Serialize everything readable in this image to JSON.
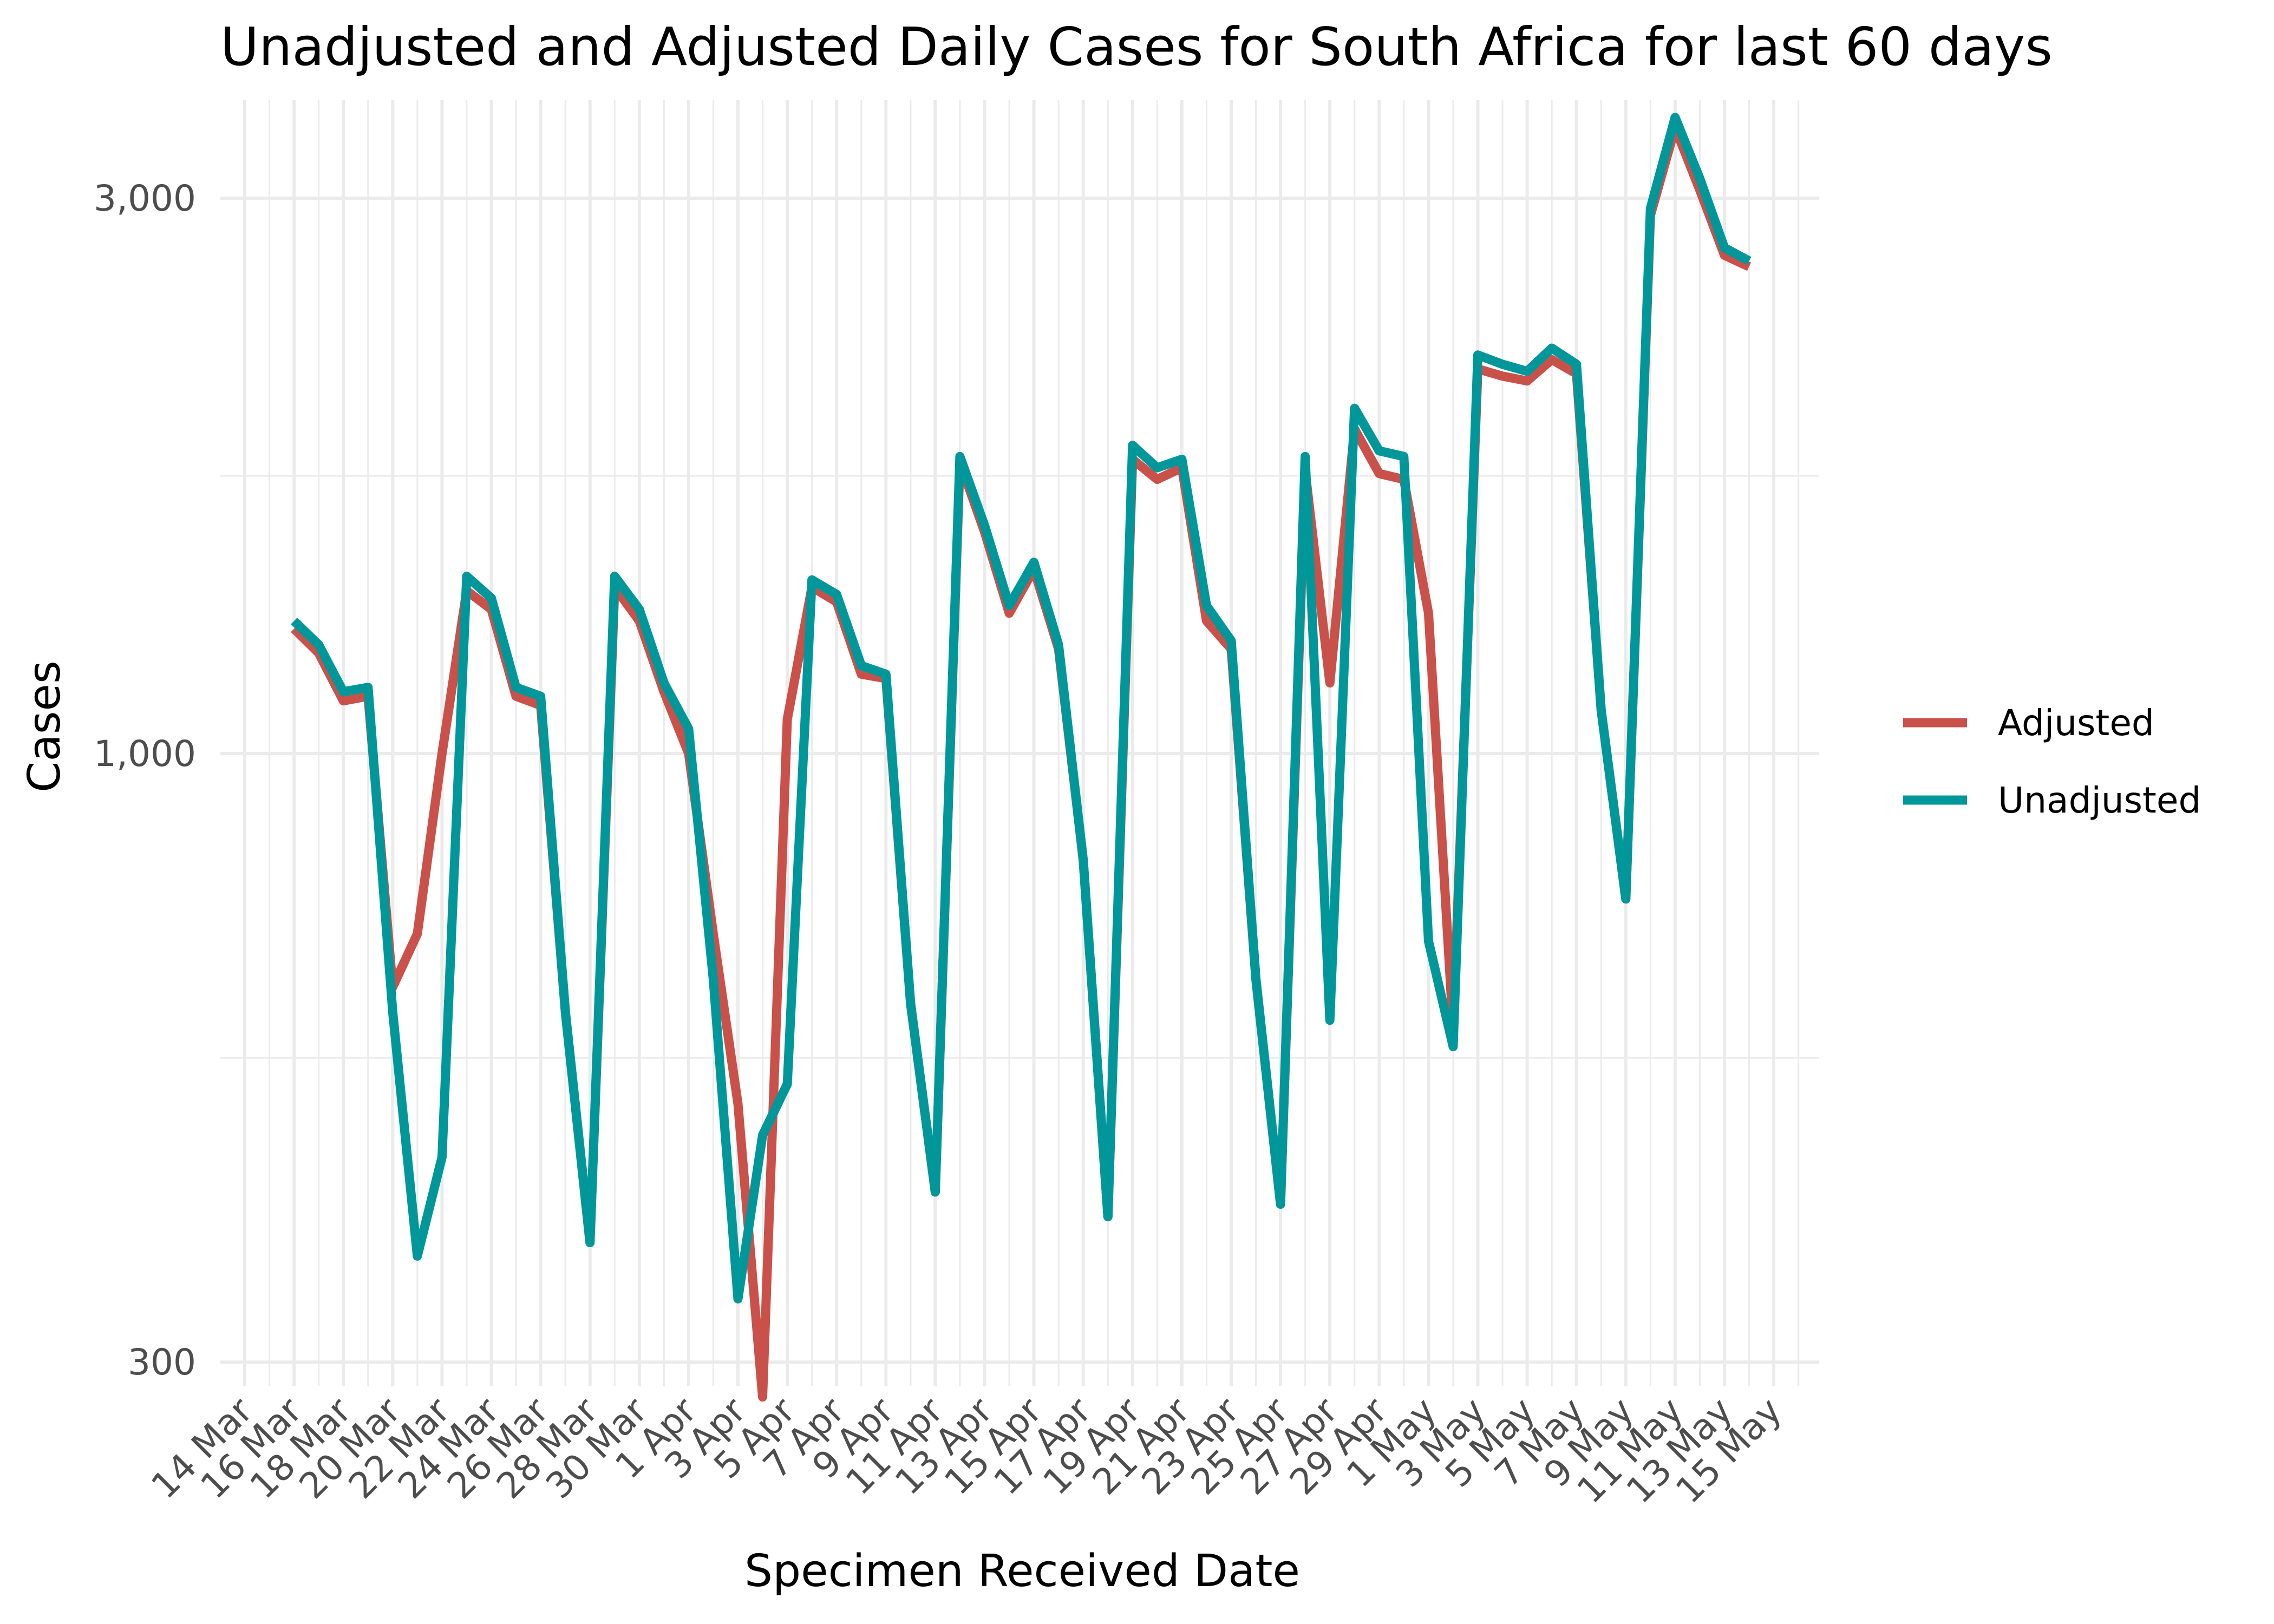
{
  "chart_data": {
    "type": "line",
    "title": "Unadjusted and Adjusted Daily Cases for South Africa for last 60 days",
    "xlabel": "Specimen Received Date",
    "ylabel": "Cases",
    "y_scale": "log",
    "ylim": [
      260,
      4100
    ],
    "y_ticks": [
      {
        "value": 300,
        "label": "300"
      },
      {
        "value": 1000,
        "label": "1,000"
      },
      {
        "value": 3000,
        "label": "3,000"
      }
    ],
    "x_ticks": [
      "14 Mar",
      "16 Mar",
      "18 Mar",
      "20 Mar",
      "22 Mar",
      "24 Mar",
      "26 Mar",
      "28 Mar",
      "30 Mar",
      "1 Apr",
      "3 Apr",
      "5 Apr",
      "7 Apr",
      "9 Apr",
      "11 Apr",
      "13 Apr",
      "15 Apr",
      "17 Apr",
      "19 Apr",
      "21 Apr",
      "23 Apr",
      "25 Apr",
      "27 Apr",
      "29 Apr",
      "1 May",
      "3 May",
      "5 May",
      "7 May",
      "9 May",
      "11 May",
      "13 May",
      "15 May"
    ],
    "x_dates_start": "14 Mar",
    "x_dates_end": "16 May",
    "grid": true,
    "legend": "right",
    "x_start": "16 Mar",
    "series": [
      {
        "name": "Adjusted",
        "color": "#C9514A",
        "values": [
          1280,
          1220,
          1110,
          1120,
          630,
          700,
          1000,
          1380,
          1330,
          1120,
          1100,
          600,
          380,
          1390,
          1300,
          1130,
          1000,
          700,
          500,
          280,
          1070,
          1390,
          1350,
          1170,
          1160,
          610,
          420,
          1780,
          1550,
          1320,
          1440,
          1230,
          810,
          400,
          1790,
          1720,
          1760,
          1300,
          1230,
          640,
          410,
          1750,
          1150,
          1900,
          1740,
          1720,
          1320,
          580,
          2140,
          2110,
          2090,
          2180,
          2120,
          1090,
          750,
          2900,
          3450,
          3050,
          2680,
          2620
        ]
      },
      {
        "name": "Unadjusted",
        "color": "#00979B",
        "values": [
          1300,
          1240,
          1130,
          1140,
          600,
          370,
          450,
          1420,
          1360,
          1140,
          1120,
          600,
          380,
          1420,
          1330,
          1150,
          1050,
          640,
          340,
          470,
          520,
          1410,
          1370,
          1190,
          1170,
          610,
          420,
          1800,
          1570,
          1340,
          1460,
          1240,
          810,
          400,
          1840,
          1760,
          1790,
          1340,
          1250,
          640,
          410,
          1800,
          590,
          1980,
          1820,
          1800,
          690,
          560,
          2200,
          2160,
          2130,
          2230,
          2160,
          1090,
          750,
          2940,
          3520,
          3120,
          2720,
          2650
        ]
      }
    ]
  }
}
